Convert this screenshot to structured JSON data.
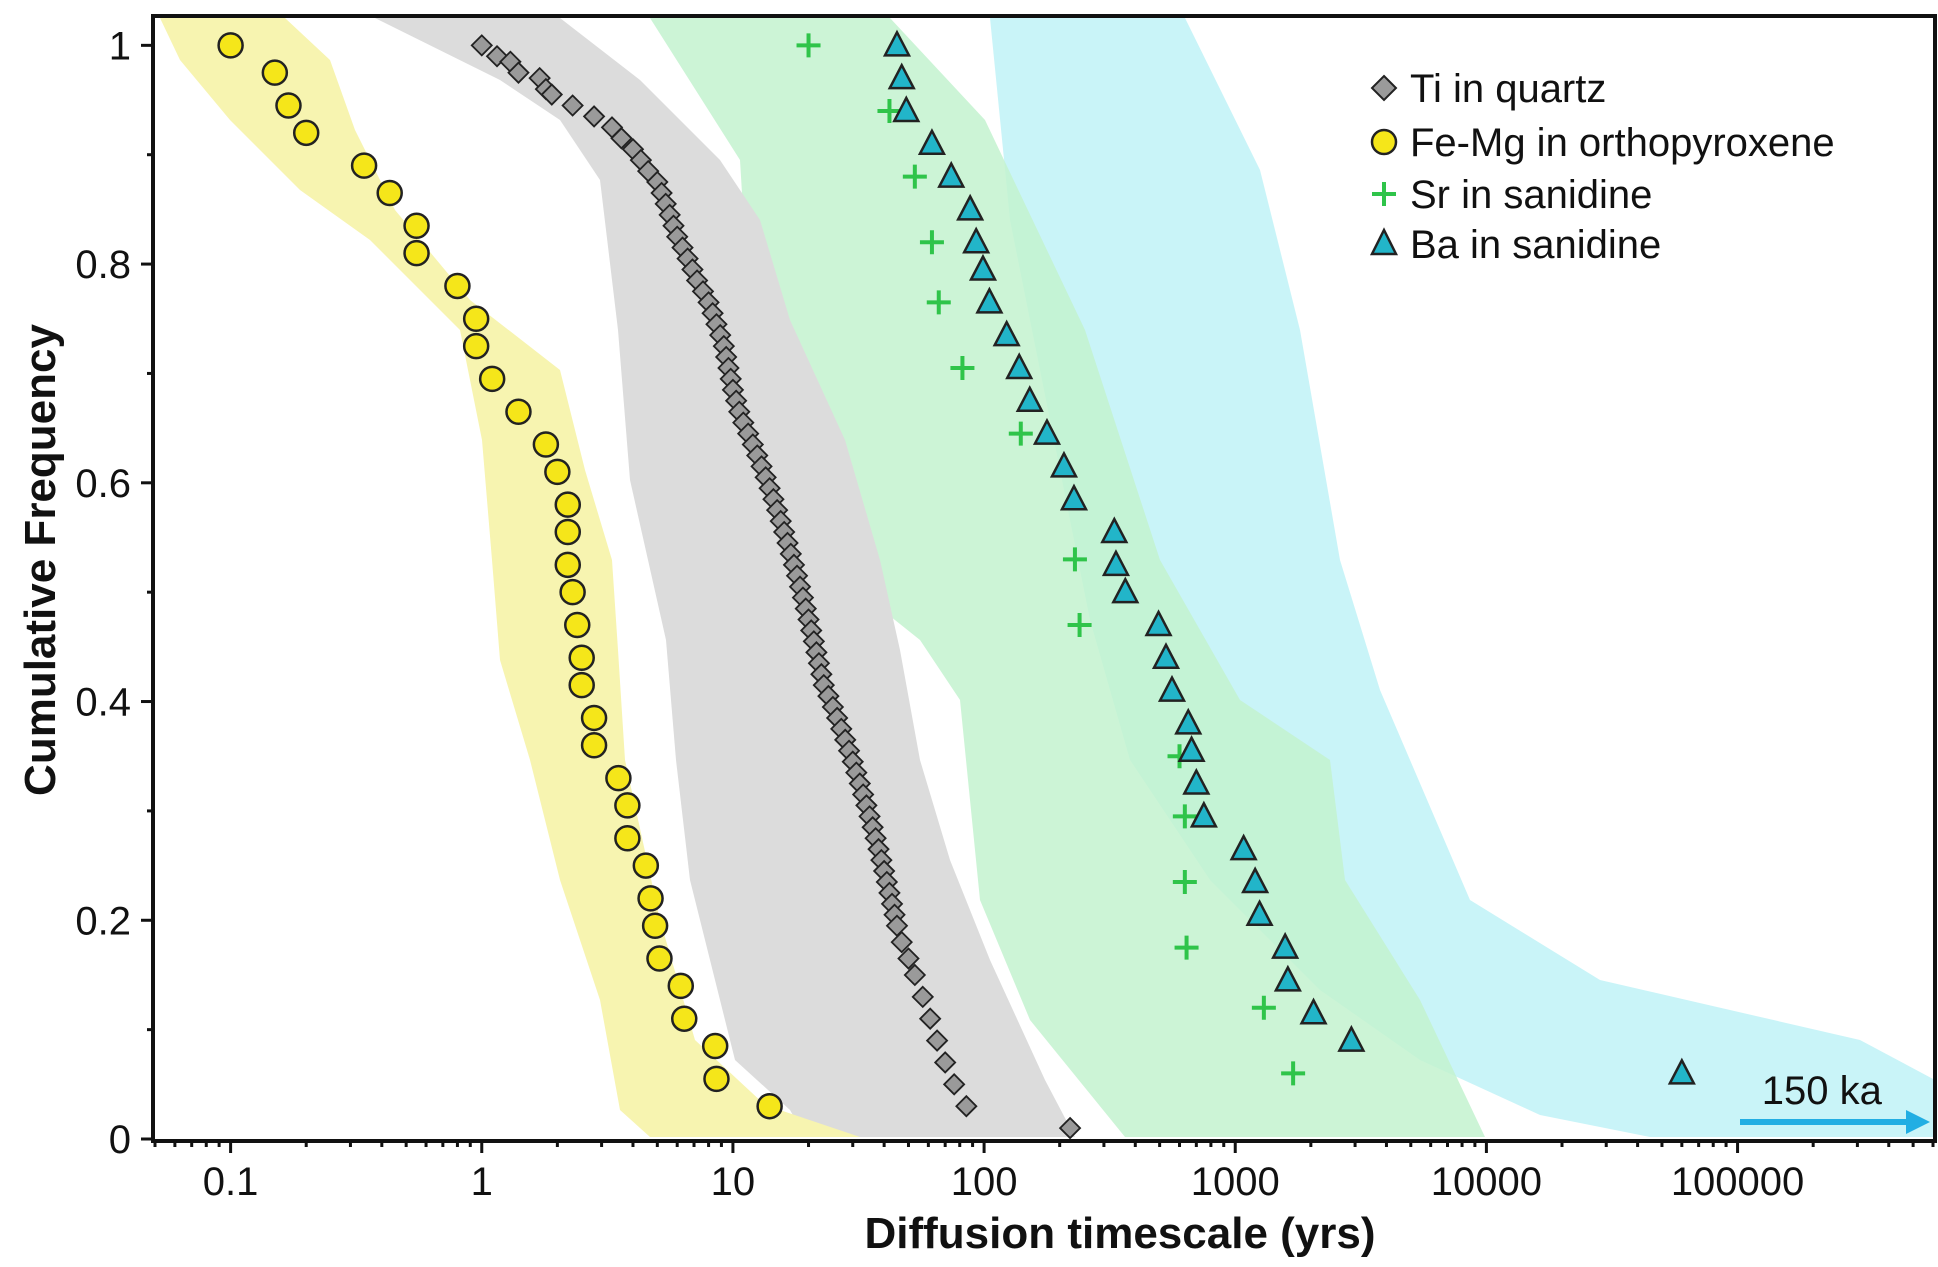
{
  "chart_data": {
    "type": "scatter",
    "title": "",
    "xlabel": "Diffusion timescale (yrs)",
    "ylabel": "Cumulative Frequency",
    "x_scale": "log",
    "xlim": [
      0.05,
      600000
    ],
    "ylim": [
      0,
      1.025
    ],
    "x_ticks": [
      0.1,
      1,
      10,
      100,
      1000,
      10000,
      100000
    ],
    "x_tick_labels": [
      "0.1",
      "1",
      "10",
      "100",
      "1000",
      "10000",
      "100000"
    ],
    "y_ticks": [
      0,
      0.2,
      0.4,
      0.6,
      0.8,
      1
    ],
    "y_tick_labels": [
      "0",
      "0.2",
      "0.4",
      "0.6",
      "0.8",
      "1"
    ],
    "grid": false,
    "legend_position": "top-right",
    "legend": [
      "Ti in quartz",
      "Fe-Mg in orthopyroxene",
      "Sr in sanidine",
      "Ba in sanidine"
    ],
    "annotations": [
      {
        "text": "150 ka",
        "x": 150000,
        "y": 0.045
      }
    ],
    "series": [
      {
        "name": "Ti in quartz",
        "marker": "diamond",
        "color": "#9a9a9a",
        "x": [
          1.0,
          1.15,
          1.3,
          1.4,
          1.7,
          1.8,
          1.9,
          2.3,
          2.8,
          3.3,
          3.6,
          4.0,
          4.3,
          4.6,
          5.0,
          5.2,
          5.4,
          5.6,
          5.8,
          6.0,
          6.3,
          6.6,
          6.9,
          7.2,
          7.6,
          8.0,
          8.3,
          8.6,
          8.9,
          9.2,
          9.4,
          9.6,
          9.8,
          10.0,
          10.3,
          10.6,
          11.0,
          11.5,
          12.0,
          12.5,
          13.0,
          13.5,
          14.0,
          14.5,
          15.0,
          15.5,
          16.0,
          16.5,
          17.0,
          17.5,
          18.0,
          18.5,
          19.0,
          19.5,
          20.0,
          20.5,
          21.0,
          21.5,
          22.0,
          22.5,
          23.0,
          24.0,
          25.0,
          26.0,
          27.0,
          28.0,
          29.0,
          30.0,
          31.0,
          32.0,
          33.0,
          34.0,
          35.0,
          36.0,
          37.0,
          38.0,
          39.0,
          40.0,
          41.0,
          42.0,
          43.0,
          44.0,
          45.0,
          47.0,
          50.0,
          53.0,
          57.0,
          61.0,
          65.0,
          70.0,
          76.0,
          85.0,
          220.0
        ],
        "y": [
          1.0,
          0.99,
          0.985,
          0.975,
          0.97,
          0.96,
          0.955,
          0.945,
          0.935,
          0.925,
          0.915,
          0.905,
          0.895,
          0.885,
          0.875,
          0.865,
          0.855,
          0.845,
          0.835,
          0.825,
          0.815,
          0.805,
          0.795,
          0.785,
          0.775,
          0.765,
          0.755,
          0.745,
          0.735,
          0.725,
          0.715,
          0.705,
          0.695,
          0.685,
          0.675,
          0.665,
          0.655,
          0.645,
          0.635,
          0.625,
          0.615,
          0.605,
          0.595,
          0.585,
          0.575,
          0.565,
          0.555,
          0.545,
          0.535,
          0.525,
          0.515,
          0.505,
          0.495,
          0.485,
          0.475,
          0.465,
          0.455,
          0.445,
          0.435,
          0.425,
          0.415,
          0.405,
          0.395,
          0.385,
          0.375,
          0.365,
          0.355,
          0.345,
          0.335,
          0.325,
          0.315,
          0.305,
          0.295,
          0.285,
          0.275,
          0.265,
          0.255,
          0.245,
          0.235,
          0.225,
          0.215,
          0.205,
          0.195,
          0.18,
          0.165,
          0.15,
          0.13,
          0.11,
          0.09,
          0.07,
          0.05,
          0.03,
          0.01
        ]
      },
      {
        "name": "Fe-Mg in orthopyroxene",
        "marker": "circle",
        "color": "#f5e61a",
        "x": [
          0.1,
          0.15,
          0.17,
          0.2,
          0.34,
          0.43,
          0.55,
          0.55,
          0.8,
          0.95,
          0.95,
          1.1,
          1.4,
          1.8,
          2.0,
          2.2,
          2.2,
          2.2,
          2.3,
          2.4,
          2.5,
          2.5,
          2.8,
          2.8,
          3.5,
          3.8,
          3.8,
          4.5,
          4.7,
          4.9,
          5.1,
          6.2,
          6.4,
          8.5,
          8.6,
          14.0
        ],
        "y": [
          1.0,
          0.975,
          0.945,
          0.92,
          0.89,
          0.865,
          0.835,
          0.81,
          0.78,
          0.75,
          0.725,
          0.695,
          0.665,
          0.635,
          0.61,
          0.58,
          0.555,
          0.525,
          0.5,
          0.47,
          0.44,
          0.415,
          0.385,
          0.36,
          0.33,
          0.305,
          0.275,
          0.25,
          0.22,
          0.195,
          0.165,
          0.14,
          0.11,
          0.085,
          0.055,
          0.03
        ]
      },
      {
        "name": "Sr in sanidine",
        "marker": "plus",
        "color": "#2fc44a",
        "x": [
          20,
          42,
          53,
          62,
          66,
          82,
          140,
          230,
          240,
          600,
          630,
          630,
          640,
          1300,
          1700
        ],
        "y": [
          1.0,
          0.94,
          0.88,
          0.82,
          0.765,
          0.705,
          0.645,
          0.53,
          0.47,
          0.35,
          0.295,
          0.235,
          0.175,
          0.12,
          0.06
        ]
      },
      {
        "name": "Ba in sanidine",
        "marker": "triangle",
        "color": "#22b5c9",
        "x": [
          45,
          47,
          49,
          62,
          74,
          88,
          93,
          99,
          105,
          123,
          138,
          152,
          178,
          208,
          228,
          330,
          335,
          365,
          495,
          530,
          560,
          650,
          670,
          700,
          750,
          1080,
          1200,
          1250,
          1580,
          1620,
          2050,
          2900,
          60000
        ],
        "y": [
          1.0,
          0.97,
          0.94,
          0.91,
          0.88,
          0.85,
          0.82,
          0.795,
          0.765,
          0.735,
          0.705,
          0.675,
          0.645,
          0.615,
          0.585,
          0.555,
          0.525,
          0.5,
          0.47,
          0.44,
          0.41,
          0.38,
          0.355,
          0.325,
          0.295,
          0.265,
          0.235,
          0.205,
          0.175,
          0.145,
          0.115,
          0.09,
          0.06
        ]
      }
    ]
  }
}
